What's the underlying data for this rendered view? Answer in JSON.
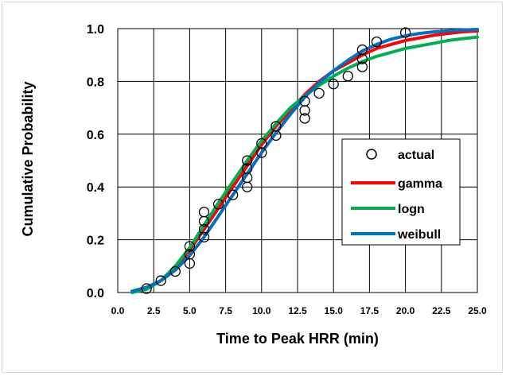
{
  "chart_data": {
    "type": "scatter",
    "title": "",
    "xlabel": "Time to Peak HRR (min)",
    "ylabel": "Cumulative Probability",
    "xlim": [
      0,
      25
    ],
    "ylim": [
      0,
      1
    ],
    "xticks": [
      0,
      2.5,
      5,
      7.5,
      10,
      12.5,
      15,
      17.5,
      20,
      22.5,
      25
    ],
    "xtick_labels": [
      "0.0",
      "2.5",
      "5.0",
      "7.5",
      "10.0",
      "12.5",
      "15.0",
      "17.5",
      "20.0",
      "22.5",
      "25.0"
    ],
    "yticks": [
      0,
      0.2,
      0.4,
      0.6,
      0.8,
      1.0
    ],
    "ytick_labels": [
      "0.0",
      "0.2",
      "0.4",
      "0.6",
      "0.8",
      "1.0"
    ],
    "grid": true,
    "legend_position": "right-center",
    "series": [
      {
        "name": "actual",
        "kind": "markers",
        "marker": "open-circle",
        "color": "#000000",
        "points": [
          [
            2,
            0.015
          ],
          [
            3,
            0.045
          ],
          [
            4,
            0.08
          ],
          [
            5,
            0.11
          ],
          [
            5,
            0.145
          ],
          [
            5,
            0.175
          ],
          [
            6,
            0.21
          ],
          [
            6,
            0.24
          ],
          [
            6,
            0.27
          ],
          [
            6,
            0.305
          ],
          [
            7,
            0.335
          ],
          [
            8,
            0.37
          ],
          [
            9,
            0.4
          ],
          [
            9,
            0.435
          ],
          [
            9,
            0.47
          ],
          [
            9,
            0.5
          ],
          [
            10,
            0.53
          ],
          [
            10,
            0.565
          ],
          [
            11,
            0.595
          ],
          [
            11,
            0.63
          ],
          [
            13,
            0.66
          ],
          [
            13,
            0.69
          ],
          [
            13,
            0.725
          ],
          [
            14,
            0.755
          ],
          [
            15,
            0.79
          ],
          [
            16,
            0.82
          ],
          [
            17,
            0.855
          ],
          [
            17,
            0.885
          ],
          [
            17,
            0.92
          ],
          [
            18,
            0.95
          ],
          [
            20,
            0.985
          ]
        ]
      },
      {
        "name": "gamma",
        "kind": "line",
        "color": "#ff0000",
        "x": [
          1,
          2,
          3,
          4,
          5,
          6,
          7,
          8,
          9,
          10,
          11,
          12,
          13,
          14,
          15,
          16,
          17,
          18,
          19,
          20,
          21,
          22,
          23,
          24,
          25
        ],
        "y": [
          0.002,
          0.015,
          0.045,
          0.095,
          0.16,
          0.24,
          0.32,
          0.4,
          0.48,
          0.56,
          0.63,
          0.69,
          0.75,
          0.8,
          0.84,
          0.87,
          0.9,
          0.925,
          0.94,
          0.955,
          0.965,
          0.975,
          0.982,
          0.988,
          0.991
        ]
      },
      {
        "name": "logn",
        "kind": "line",
        "color": "#00b050",
        "x": [
          1,
          2,
          3,
          4,
          5,
          6,
          7,
          8,
          9,
          10,
          11,
          12,
          13,
          14,
          15,
          16,
          17,
          18,
          19,
          20,
          21,
          22,
          23,
          24,
          25
        ],
        "y": [
          0.0,
          0.012,
          0.045,
          0.1,
          0.17,
          0.255,
          0.34,
          0.42,
          0.5,
          0.575,
          0.64,
          0.7,
          0.745,
          0.785,
          0.82,
          0.85,
          0.875,
          0.895,
          0.91,
          0.925,
          0.935,
          0.945,
          0.955,
          0.962,
          0.968
        ]
      },
      {
        "name": "weibull",
        "kind": "line",
        "color": "#0070c0",
        "x": [
          1,
          2,
          3,
          4,
          5,
          6,
          7,
          8,
          9,
          10,
          11,
          12,
          13,
          14,
          15,
          16,
          17,
          18,
          19,
          20,
          21,
          22,
          23,
          24,
          25
        ],
        "y": [
          0.005,
          0.02,
          0.045,
          0.085,
          0.14,
          0.21,
          0.29,
          0.37,
          0.45,
          0.53,
          0.605,
          0.675,
          0.74,
          0.795,
          0.84,
          0.88,
          0.915,
          0.94,
          0.96,
          0.973,
          0.982,
          0.988,
          0.992,
          0.995,
          0.997
        ]
      }
    ]
  }
}
